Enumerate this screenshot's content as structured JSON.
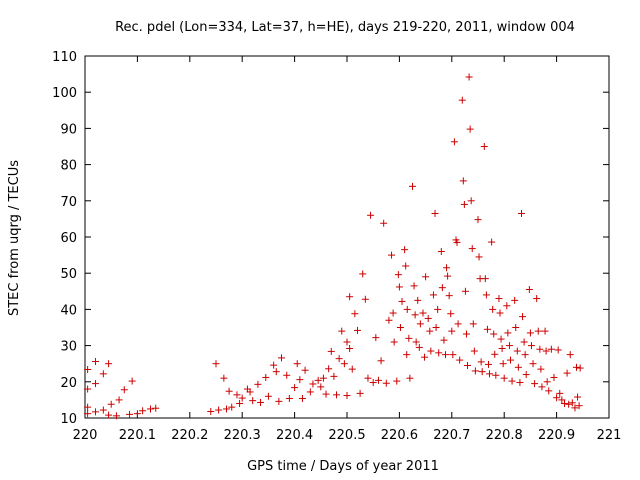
{
  "chart_data": {
    "type": "scatter",
    "title": "Rec. pdel (Lon=334, Lat=37, h=HE), days 219-220, 2011, window 004",
    "xlabel": "GPS time / Days of year 2011",
    "ylabel": "STEC from uqrg / TECUs",
    "xlim": [
      220,
      221
    ],
    "ylim": [
      10,
      110
    ],
    "xticks": [
      220,
      220.1,
      220.2,
      220.3,
      220.4,
      220.5,
      220.6,
      220.7,
      220.8,
      220.9,
      221
    ],
    "xtick_labels": [
      "220",
      "220.1",
      "220.2",
      "220.3",
      "220.4",
      "220.5",
      "220.6",
      "220.7",
      "220.8",
      "220.9",
      "221"
    ],
    "yticks": [
      10,
      20,
      30,
      40,
      50,
      60,
      70,
      80,
      90,
      100,
      110
    ],
    "ytick_labels": [
      "10",
      "20",
      "30",
      "40",
      "50",
      "60",
      "70",
      "80",
      "90",
      "100",
      "110"
    ],
    "grid": false,
    "marker_color": "#cc0000",
    "points": [
      [
        220.005,
        23.4
      ],
      [
        220.005,
        18.0
      ],
      [
        220.005,
        13.0
      ],
      [
        220.005,
        11.2
      ],
      [
        220.02,
        25.6
      ],
      [
        220.02,
        19.5
      ],
      [
        220.02,
        11.7
      ],
      [
        220.035,
        22.2
      ],
      [
        220.035,
        12.2
      ],
      [
        220.045,
        25.0
      ],
      [
        220.045,
        10.8
      ],
      [
        220.05,
        13.8
      ],
      [
        220.06,
        10.6
      ],
      [
        220.065,
        15.0
      ],
      [
        220.075,
        17.8
      ],
      [
        220.085,
        11.0
      ],
      [
        220.09,
        20.2
      ],
      [
        220.1,
        11.2
      ],
      [
        220.11,
        12.0
      ],
      [
        220.125,
        12.5
      ],
      [
        220.135,
        12.7
      ],
      [
        220.24,
        11.8
      ],
      [
        220.25,
        25.0
      ],
      [
        220.255,
        12.2
      ],
      [
        220.265,
        21.0
      ],
      [
        220.27,
        12.5
      ],
      [
        220.275,
        17.4
      ],
      [
        220.28,
        13.0
      ],
      [
        220.29,
        16.4
      ],
      [
        220.295,
        14.0
      ],
      [
        220.3,
        15.5
      ],
      [
        220.31,
        18.0
      ],
      [
        220.315,
        17.2
      ],
      [
        220.32,
        14.8
      ],
      [
        220.33,
        19.3
      ],
      [
        220.335,
        14.3
      ],
      [
        220.345,
        21.2
      ],
      [
        220.35,
        16.0
      ],
      [
        220.36,
        24.6
      ],
      [
        220.365,
        22.8
      ],
      [
        220.37,
        14.6
      ],
      [
        220.375,
        26.6
      ],
      [
        220.385,
        21.8
      ],
      [
        220.39,
        15.4
      ],
      [
        220.4,
        18.4
      ],
      [
        220.405,
        25.0
      ],
      [
        220.41,
        20.6
      ],
      [
        220.415,
        15.4
      ],
      [
        220.42,
        23.2
      ],
      [
        220.43,
        17.2
      ],
      [
        220.435,
        19.4
      ],
      [
        220.445,
        20.4
      ],
      [
        220.45,
        18.6
      ],
      [
        220.455,
        21.0
      ],
      [
        220.46,
        16.6
      ],
      [
        220.465,
        23.6
      ],
      [
        220.47,
        28.4
      ],
      [
        220.475,
        21.5
      ],
      [
        220.48,
        16.4
      ],
      [
        220.485,
        26.4
      ],
      [
        220.49,
        34.0
      ],
      [
        220.495,
        25.0
      ],
      [
        220.5,
        16.2
      ],
      [
        220.505,
        43.5
      ],
      [
        220.5,
        31.0
      ],
      [
        220.505,
        29.2
      ],
      [
        220.51,
        23.5
      ],
      [
        220.515,
        38.8
      ],
      [
        220.52,
        34.2
      ],
      [
        220.525,
        16.8
      ],
      [
        220.53,
        49.8
      ],
      [
        220.535,
        42.8
      ],
      [
        220.54,
        21.0
      ],
      [
        220.545,
        66.0
      ],
      [
        220.55,
        19.8
      ],
      [
        220.555,
        32.2
      ],
      [
        220.56,
        20.4
      ],
      [
        220.565,
        25.8
      ],
      [
        220.57,
        63.8
      ],
      [
        220.575,
        19.6
      ],
      [
        220.58,
        37.0
      ],
      [
        220.585,
        55.0
      ],
      [
        220.588,
        39.0
      ],
      [
        220.59,
        31.0
      ],
      [
        220.595,
        20.2
      ],
      [
        220.598,
        49.6
      ],
      [
        220.6,
        46.2
      ],
      [
        220.602,
        35.0
      ],
      [
        220.605,
        42.2
      ],
      [
        220.61,
        56.5
      ],
      [
        220.612,
        52.0
      ],
      [
        220.614,
        27.5
      ],
      [
        220.615,
        40.0
      ],
      [
        220.618,
        32.0
      ],
      [
        220.62,
        21.0
      ],
      [
        220.625,
        74.0
      ],
      [
        220.628,
        46.5
      ],
      [
        220.63,
        38.5
      ],
      [
        220.632,
        31.0
      ],
      [
        220.635,
        42.5
      ],
      [
        220.638,
        29.5
      ],
      [
        220.64,
        36.0
      ],
      [
        220.645,
        39.0
      ],
      [
        220.648,
        26.8
      ],
      [
        220.65,
        49.0
      ],
      [
        220.655,
        37.5
      ],
      [
        220.658,
        34.0
      ],
      [
        220.66,
        28.5
      ],
      [
        220.665,
        44.0
      ],
      [
        220.668,
        66.5
      ],
      [
        220.67,
        35.0
      ],
      [
        220.673,
        40.0
      ],
      [
        220.675,
        28.0
      ],
      [
        220.68,
        56.0
      ],
      [
        220.682,
        46.0
      ],
      [
        220.685,
        31.5
      ],
      [
        220.688,
        27.5
      ],
      [
        220.69,
        51.5
      ],
      [
        220.692,
        49.2
      ],
      [
        220.695,
        43.8
      ],
      [
        220.698,
        38.8
      ],
      [
        220.7,
        34.0
      ],
      [
        220.702,
        27.5
      ],
      [
        220.705,
        86.3
      ],
      [
        220.708,
        59.2
      ],
      [
        220.71,
        58.5
      ],
      [
        220.712,
        36.0
      ],
      [
        220.715,
        26.0
      ],
      [
        220.72,
        97.8
      ],
      [
        220.722,
        75.5
      ],
      [
        220.724,
        69.0
      ],
      [
        220.726,
        45.0
      ],
      [
        220.728,
        33.2
      ],
      [
        220.73,
        24.5
      ],
      [
        220.733,
        104.2
      ],
      [
        220.735,
        89.8
      ],
      [
        220.737,
        70.0
      ],
      [
        220.739,
        56.8
      ],
      [
        220.741,
        36.0
      ],
      [
        220.743,
        28.5
      ],
      [
        220.745,
        23.0
      ],
      [
        220.75,
        64.8
      ],
      [
        220.752,
        54.5
      ],
      [
        220.754,
        48.5
      ],
      [
        220.756,
        25.5
      ],
      [
        220.758,
        22.8
      ],
      [
        220.762,
        85.0
      ],
      [
        220.764,
        48.5
      ],
      [
        220.766,
        44.0
      ],
      [
        220.768,
        34.5
      ],
      [
        220.77,
        24.8
      ],
      [
        220.772,
        22.2
      ],
      [
        220.776,
        58.6
      ],
      [
        220.778,
        40.0
      ],
      [
        220.78,
        33.2
      ],
      [
        220.782,
        27.6
      ],
      [
        220.784,
        21.8
      ],
      [
        220.79,
        43.0
      ],
      [
        220.792,
        39.0
      ],
      [
        220.794,
        31.8
      ],
      [
        220.796,
        29.2
      ],
      [
        220.798,
        25.0
      ],
      [
        220.8,
        21.0
      ],
      [
        220.805,
        41.0
      ],
      [
        220.807,
        33.5
      ],
      [
        220.81,
        30.0
      ],
      [
        220.812,
        26.0
      ],
      [
        220.815,
        20.2
      ],
      [
        220.82,
        42.5
      ],
      [
        220.822,
        35.0
      ],
      [
        220.825,
        28.5
      ],
      [
        220.827,
        24.0
      ],
      [
        220.83,
        19.8
      ],
      [
        220.833,
        66.5
      ],
      [
        220.835,
        38.0
      ],
      [
        220.838,
        31.0
      ],
      [
        220.84,
        27.5
      ],
      [
        220.842,
        22.0
      ],
      [
        220.848,
        45.5
      ],
      [
        220.85,
        33.5
      ],
      [
        220.852,
        30.0
      ],
      [
        220.855,
        25.0
      ],
      [
        220.858,
        19.5
      ],
      [
        220.862,
        43.0
      ],
      [
        220.865,
        34.0
      ],
      [
        220.868,
        29.0
      ],
      [
        220.87,
        23.5
      ],
      [
        220.872,
        18.6
      ],
      [
        220.878,
        34.0
      ],
      [
        220.88,
        28.5
      ],
      [
        220.882,
        20.0
      ],
      [
        220.885,
        17.5
      ],
      [
        220.89,
        29.0
      ],
      [
        220.895,
        21.2
      ],
      [
        220.9,
        15.6
      ],
      [
        220.903,
        28.8
      ],
      [
        220.906,
        16.8
      ],
      [
        220.91,
        15.0
      ],
      [
        220.915,
        14.0
      ],
      [
        220.92,
        22.4
      ],
      [
        220.923,
        13.8
      ],
      [
        220.926,
        27.5
      ],
      [
        220.93,
        14.2
      ],
      [
        220.935,
        12.8
      ],
      [
        220.938,
        24.0
      ],
      [
        220.94,
        15.8
      ],
      [
        220.943,
        13.4
      ],
      [
        220.945,
        23.8
      ]
    ]
  }
}
